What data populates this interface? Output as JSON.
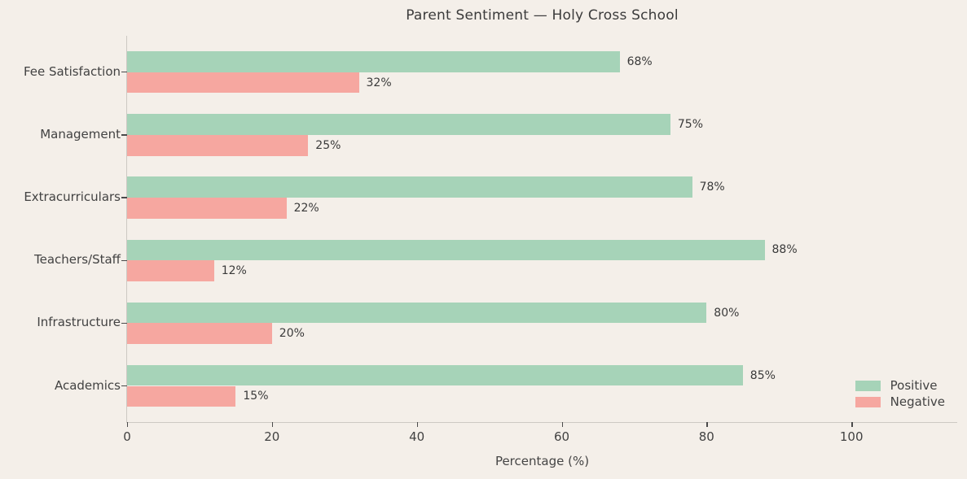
{
  "figure": {
    "background_color": "#f4efe9",
    "spine_color": "#cdc9c3",
    "text_color": "#424242"
  },
  "chart_data": {
    "type": "bar",
    "orientation": "horizontal",
    "title": "Parent Sentiment — Holy Cross School",
    "xlabel": "Percentage (%)",
    "ylabel": "",
    "categories_top_to_bottom": [
      "Fee Satisfaction",
      "Management",
      "Extracurriculars",
      "Teachers/Staff",
      "Infrastructure",
      "Academics"
    ],
    "series": [
      {
        "name": "Positive",
        "color": "#a6d3b8",
        "values": [
          68,
          75,
          78,
          88,
          80,
          85
        ]
      },
      {
        "name": "Negative",
        "color": "#f6a7a0",
        "values": [
          32,
          25,
          22,
          12,
          20,
          15
        ]
      }
    ],
    "value_labels": [
      [
        "68%",
        "75%",
        "78%",
        "88%",
        "80%",
        "85%"
      ],
      [
        "32%",
        "25%",
        "22%",
        "12%",
        "20%",
        "15%"
      ]
    ],
    "x_ticks": [
      "0",
      "20",
      "40",
      "60",
      "80",
      "100"
    ],
    "x_tick_values": [
      0,
      20,
      40,
      60,
      80,
      100
    ],
    "xlim": [
      0,
      114.6
    ],
    "grid": false,
    "legend": {
      "position": "lower right",
      "items": [
        {
          "label": "Positive",
          "color": "#a6d3b8"
        },
        {
          "label": "Negative",
          "color": "#f6a7a0"
        }
      ]
    }
  }
}
